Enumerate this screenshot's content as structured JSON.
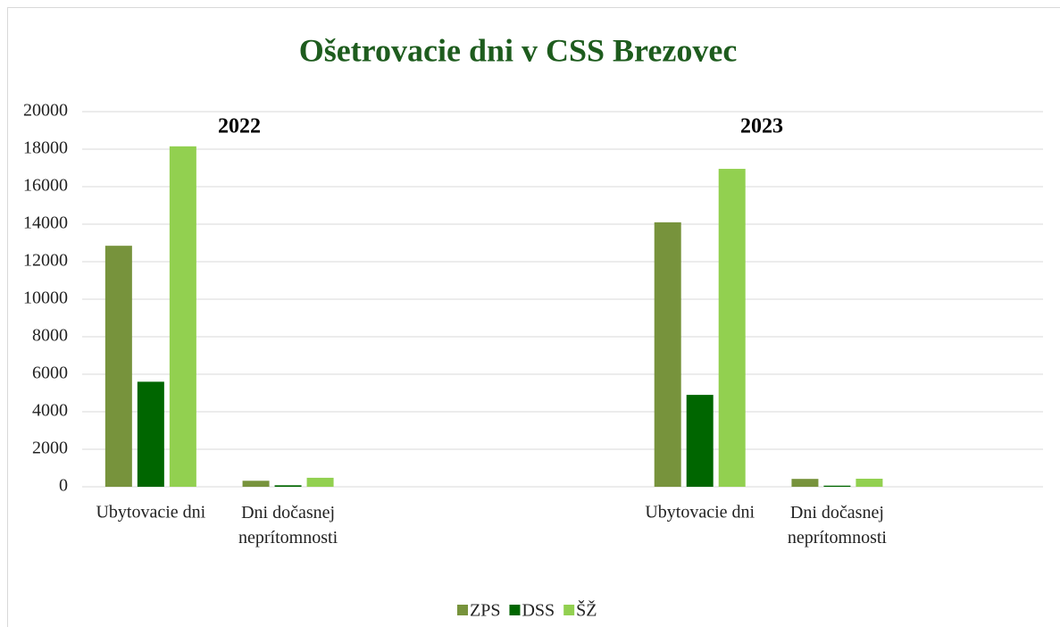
{
  "chart_data": {
    "type": "bar",
    "title": "Ošetrovacie dni v CSS Brezovec",
    "annotations": [
      "2022",
      "2023"
    ],
    "categories": [
      "Ubytovacie dni",
      "Dni dočasnej neprítomnosti",
      null,
      null,
      "Ubytovacie dni",
      "Dni dočasnej neprítomnosti",
      null
    ],
    "series": [
      {
        "name": "ZPS",
        "color": "#77933c",
        "values": [
          12850,
          320,
          null,
          null,
          14100,
          420,
          null
        ]
      },
      {
        "name": "DSS",
        "color": "#006600",
        "values": [
          5600,
          80,
          null,
          null,
          4900,
          60,
          null
        ]
      },
      {
        "name": "ŠŽ",
        "color": "#92d050",
        "values": [
          18150,
          480,
          null,
          null,
          16950,
          430,
          null
        ]
      }
    ],
    "ylim": [
      0,
      20000
    ],
    "yticks": [
      0,
      2000,
      4000,
      6000,
      8000,
      10000,
      12000,
      14000,
      16000,
      18000,
      20000
    ],
    "grid": true,
    "legend": "bottom"
  }
}
